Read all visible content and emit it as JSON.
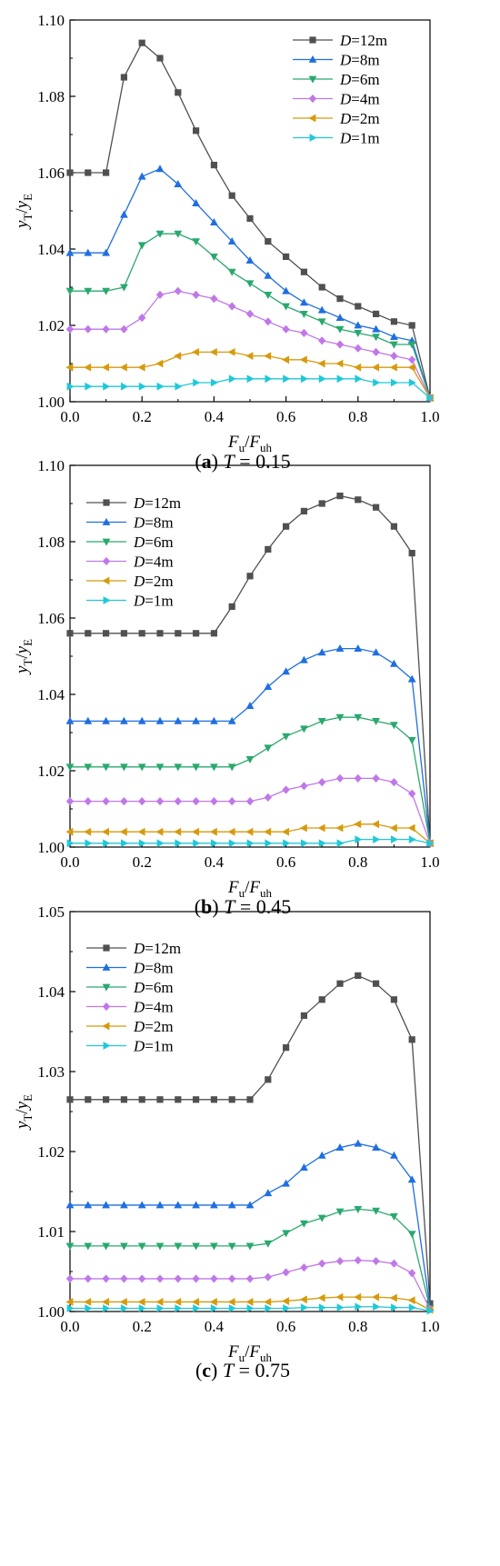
{
  "chart_data": [
    {
      "type": "line",
      "caption": {
        "letter": "a",
        "var": "T",
        "value": "= 0.15"
      },
      "xlabel": {
        "main": "F",
        "sub1": "u",
        "sep": "/",
        "main2": "F",
        "sub2": "uh"
      },
      "ylabel": {
        "main": "y",
        "sub1": "T",
        "sep": "/",
        "main2": "y",
        "sub2": "E"
      },
      "xlim": [
        0,
        1.0
      ],
      "ylim": [
        1.0,
        1.1
      ],
      "xticks": [
        "0.0",
        "0.2",
        "0.4",
        "0.6",
        "0.8",
        "1.0"
      ],
      "yticks": [
        "1.00",
        "1.02",
        "1.04",
        "1.06",
        "1.08",
        "1.10"
      ],
      "legend_position": "top-right",
      "x": [
        0,
        0.05,
        0.1,
        0.15,
        0.2,
        0.25,
        0.3,
        0.35,
        0.4,
        0.45,
        0.5,
        0.55,
        0.6,
        0.65,
        0.7,
        0.75,
        0.8,
        0.85,
        0.9,
        0.95,
        1.0
      ],
      "series": [
        {
          "name": "=12m",
          "values": [
            1.06,
            1.06,
            1.06,
            1.085,
            1.094,
            1.09,
            1.081,
            1.071,
            1.062,
            1.054,
            1.048,
            1.042,
            1.038,
            1.034,
            1.03,
            1.027,
            1.025,
            1.023,
            1.021,
            1.02,
            1.001
          ]
        },
        {
          "name": "=8m",
          "values": [
            1.039,
            1.039,
            1.039,
            1.049,
            1.059,
            1.061,
            1.057,
            1.052,
            1.047,
            1.042,
            1.037,
            1.033,
            1.029,
            1.026,
            1.024,
            1.022,
            1.02,
            1.019,
            1.017,
            1.016,
            1.001
          ]
        },
        {
          "name": "=6m",
          "values": [
            1.029,
            1.029,
            1.029,
            1.03,
            1.041,
            1.044,
            1.044,
            1.042,
            1.038,
            1.034,
            1.031,
            1.028,
            1.025,
            1.023,
            1.021,
            1.019,
            1.018,
            1.017,
            1.015,
            1.015,
            1.001
          ]
        },
        {
          "name": "=4m",
          "values": [
            1.019,
            1.019,
            1.019,
            1.019,
            1.022,
            1.028,
            1.029,
            1.028,
            1.027,
            1.025,
            1.023,
            1.021,
            1.019,
            1.018,
            1.016,
            1.015,
            1.014,
            1.013,
            1.012,
            1.011,
            1.001
          ]
        },
        {
          "name": "=2m",
          "values": [
            1.009,
            1.009,
            1.009,
            1.009,
            1.009,
            1.01,
            1.012,
            1.013,
            1.013,
            1.013,
            1.012,
            1.012,
            1.011,
            1.011,
            1.01,
            1.01,
            1.009,
            1.009,
            1.009,
            1.009,
            1.001
          ]
        },
        {
          "name": "=1m",
          "values": [
            1.004,
            1.004,
            1.004,
            1.004,
            1.004,
            1.004,
            1.004,
            1.005,
            1.005,
            1.006,
            1.006,
            1.006,
            1.006,
            1.006,
            1.006,
            1.006,
            1.006,
            1.005,
            1.005,
            1.005,
            1.001
          ]
        }
      ]
    },
    {
      "type": "line",
      "caption": {
        "letter": "b",
        "var": "T",
        "value": "= 0.45"
      },
      "xlabel": {
        "main": "F",
        "sub1": "u",
        "sep": "/",
        "main2": "F",
        "sub2": "uh"
      },
      "ylabel": {
        "main": "y",
        "sub1": "T",
        "sep": "/",
        "main2": "y",
        "sub2": "E"
      },
      "xlim": [
        0,
        1.0
      ],
      "ylim": [
        1.0,
        1.1
      ],
      "xticks": [
        "0.0",
        "0.2",
        "0.4",
        "0.6",
        "0.8",
        "1.0"
      ],
      "yticks": [
        "1.00",
        "1.02",
        "1.04",
        "1.06",
        "1.08",
        "1.10"
      ],
      "legend_position": "top-left",
      "x": [
        0,
        0.05,
        0.1,
        0.15,
        0.2,
        0.25,
        0.3,
        0.35,
        0.4,
        0.45,
        0.5,
        0.55,
        0.6,
        0.65,
        0.7,
        0.75,
        0.8,
        0.85,
        0.9,
        0.95,
        1.0
      ],
      "series": [
        {
          "name": "=12m",
          "values": [
            1.056,
            1.056,
            1.056,
            1.056,
            1.056,
            1.056,
            1.056,
            1.056,
            1.056,
            1.063,
            1.071,
            1.078,
            1.084,
            1.088,
            1.09,
            1.092,
            1.091,
            1.089,
            1.084,
            1.077,
            1.001
          ]
        },
        {
          "name": "=8m",
          "values": [
            1.033,
            1.033,
            1.033,
            1.033,
            1.033,
            1.033,
            1.033,
            1.033,
            1.033,
            1.033,
            1.037,
            1.042,
            1.046,
            1.049,
            1.051,
            1.052,
            1.052,
            1.051,
            1.048,
            1.044,
            1.001
          ]
        },
        {
          "name": "=6m",
          "values": [
            1.021,
            1.021,
            1.021,
            1.021,
            1.021,
            1.021,
            1.021,
            1.021,
            1.021,
            1.021,
            1.023,
            1.026,
            1.029,
            1.031,
            1.033,
            1.034,
            1.034,
            1.033,
            1.032,
            1.028,
            1.001
          ]
        },
        {
          "name": "=4m",
          "values": [
            1.012,
            1.012,
            1.012,
            1.012,
            1.012,
            1.012,
            1.012,
            1.012,
            1.012,
            1.012,
            1.012,
            1.013,
            1.015,
            1.016,
            1.017,
            1.018,
            1.018,
            1.018,
            1.017,
            1.014,
            1.001
          ]
        },
        {
          "name": "=2m",
          "values": [
            1.004,
            1.004,
            1.004,
            1.004,
            1.004,
            1.004,
            1.004,
            1.004,
            1.004,
            1.004,
            1.004,
            1.004,
            1.004,
            1.005,
            1.005,
            1.005,
            1.006,
            1.006,
            1.005,
            1.005,
            1.001
          ]
        },
        {
          "name": "=1m",
          "values": [
            1.001,
            1.001,
            1.001,
            1.001,
            1.001,
            1.001,
            1.001,
            1.001,
            1.001,
            1.001,
            1.001,
            1.001,
            1.001,
            1.001,
            1.001,
            1.001,
            1.002,
            1.002,
            1.002,
            1.002,
            1.001
          ]
        }
      ]
    },
    {
      "type": "line",
      "caption": {
        "letter": "c",
        "var": "T",
        "value": "= 0.75"
      },
      "xlabel": {
        "main": "F",
        "sub1": "u",
        "sep": "/",
        "main2": "F",
        "sub2": "uh"
      },
      "ylabel": {
        "main": "y",
        "sub1": "T",
        "sep": "/",
        "main2": "y",
        "sub2": "E"
      },
      "xlim": [
        0,
        1.0
      ],
      "ylim": [
        1.0,
        1.05
      ],
      "xticks": [
        "0.0",
        "0.2",
        "0.4",
        "0.6",
        "0.8",
        "1.0"
      ],
      "yticks": [
        "1.00",
        "1.01",
        "1.02",
        "1.03",
        "1.04",
        "1.05"
      ],
      "legend_position": "top-left",
      "x": [
        0,
        0.05,
        0.1,
        0.15,
        0.2,
        0.25,
        0.3,
        0.35,
        0.4,
        0.45,
        0.5,
        0.55,
        0.6,
        0.65,
        0.7,
        0.75,
        0.8,
        0.85,
        0.9,
        0.95,
        1.0
      ],
      "series": [
        {
          "name": "=12m",
          "values": [
            1.0265,
            1.0265,
            1.0265,
            1.0265,
            1.0265,
            1.0265,
            1.0265,
            1.0265,
            1.0265,
            1.0265,
            1.0265,
            1.029,
            1.033,
            1.037,
            1.039,
            1.041,
            1.042,
            1.041,
            1.039,
            1.034,
            1.001
          ]
        },
        {
          "name": "=8m",
          "values": [
            1.0133,
            1.0133,
            1.0133,
            1.0133,
            1.0133,
            1.0133,
            1.0133,
            1.0133,
            1.0133,
            1.0133,
            1.0133,
            1.0148,
            1.016,
            1.018,
            1.0195,
            1.0205,
            1.021,
            1.0205,
            1.0195,
            1.0165,
            1.0005
          ]
        },
        {
          "name": "=6m",
          "values": [
            1.0082,
            1.0082,
            1.0082,
            1.0082,
            1.0082,
            1.0082,
            1.0082,
            1.0082,
            1.0082,
            1.0082,
            1.0082,
            1.0085,
            1.0098,
            1.011,
            1.0117,
            1.0125,
            1.0128,
            1.0126,
            1.0119,
            1.0097,
            1.0004
          ]
        },
        {
          "name": "=4m",
          "values": [
            1.0041,
            1.0041,
            1.0041,
            1.0041,
            1.0041,
            1.0041,
            1.0041,
            1.0041,
            1.0041,
            1.0041,
            1.0041,
            1.0043,
            1.0049,
            1.0055,
            1.006,
            1.0063,
            1.0064,
            1.0063,
            1.006,
            1.0048,
            1.0003
          ]
        },
        {
          "name": "=2m",
          "values": [
            1.0012,
            1.0012,
            1.0012,
            1.0012,
            1.0012,
            1.0012,
            1.0012,
            1.0012,
            1.0012,
            1.0012,
            1.0012,
            1.0012,
            1.0013,
            1.0015,
            1.0017,
            1.0018,
            1.0018,
            1.0018,
            1.0017,
            1.0014,
            1.0002
          ]
        },
        {
          "name": "=1m",
          "values": [
            1.0004,
            1.0004,
            1.0004,
            1.0004,
            1.0004,
            1.0004,
            1.0004,
            1.0004,
            1.0004,
            1.0004,
            1.0004,
            1.0004,
            1.0004,
            1.0005,
            1.0005,
            1.0005,
            1.0006,
            1.0006,
            1.0005,
            1.0005,
            1.0001
          ]
        }
      ]
    }
  ],
  "legend_var": "D",
  "series_colors": [
    "#505050",
    "#1f6fe0",
    "#2aa86e",
    "#c078e8",
    "#d79a0c",
    "#20c8d8"
  ],
  "series_markers": [
    "square",
    "triangle-up",
    "triangle-down",
    "diamond",
    "triangle-left",
    "triangle-right"
  ]
}
